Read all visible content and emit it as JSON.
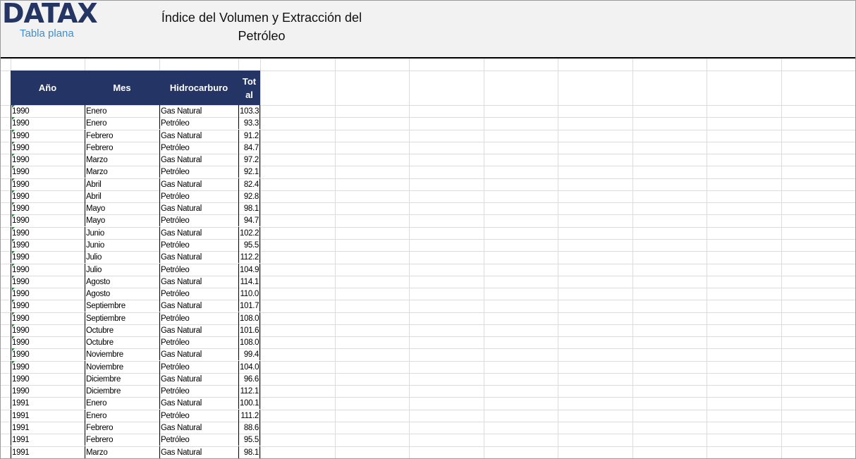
{
  "header": {
    "logo": "DATAX",
    "subtitle": "Tabla plana",
    "title_line1": "Índice del Volumen y Extracción del",
    "title_line2": "Petróleo"
  },
  "table": {
    "columns": [
      "Año",
      "Mes",
      "Hidrocarburo",
      "Tot al"
    ],
    "rows": [
      [
        "1990",
        "Enero",
        "Gas Natural",
        "103.3"
      ],
      [
        "1990",
        "Enero",
        "Petróleo",
        "93.3"
      ],
      [
        "1990",
        "Febrero",
        "Gas Natural",
        "91.2"
      ],
      [
        "1990",
        "Febrero",
        "Petróleo",
        "84.7"
      ],
      [
        "1990",
        "Marzo",
        "Gas Natural",
        "97.2"
      ],
      [
        "1990",
        "Marzo",
        "Petróleo",
        "92.1"
      ],
      [
        "1990",
        "Abril",
        "Gas Natural",
        "82.4"
      ],
      [
        "1990",
        "Abril",
        "Petróleo",
        "92.8"
      ],
      [
        "1990",
        "Mayo",
        "Gas Natural",
        "98.1"
      ],
      [
        "1990",
        "Mayo",
        "Petróleo",
        "94.7"
      ],
      [
        "1990",
        "Junio",
        "Gas Natural",
        "102.2"
      ],
      [
        "1990",
        "Junio",
        "Petróleo",
        "95.5"
      ],
      [
        "1990",
        "Julio",
        "Gas Natural",
        "112.2"
      ],
      [
        "1990",
        "Julio",
        "Petróleo",
        "104.9"
      ],
      [
        "1990",
        "Agosto",
        "Gas Natural",
        "114.1"
      ],
      [
        "1990",
        "Agosto",
        "Petróleo",
        "110.0"
      ],
      [
        "1990",
        "Septiembre",
        "Gas Natural",
        "101.7"
      ],
      [
        "1990",
        "Septiembre",
        "Petróleo",
        "108.0"
      ],
      [
        "1990",
        "Octubre",
        "Gas Natural",
        "101.6"
      ],
      [
        "1990",
        "Octubre",
        "Petróleo",
        "108.0"
      ],
      [
        "1990",
        "Noviembre",
        "Gas Natural",
        "99.4"
      ],
      [
        "1990",
        "Noviembre",
        "Petróleo",
        "104.0"
      ],
      [
        "1990",
        "Diciembre",
        "Gas Natural",
        "96.6"
      ],
      [
        "1990",
        "Diciembre",
        "Petróleo",
        "112.1"
      ],
      [
        "1991",
        "Enero",
        "Gas Natural",
        "100.1"
      ],
      [
        "1991",
        "Enero",
        "Petróleo",
        "111.2"
      ],
      [
        "1991",
        "Febrero",
        "Gas Natural",
        "88.6"
      ],
      [
        "1991",
        "Febrero",
        "Petróleo",
        "95.5"
      ],
      [
        "1991",
        "Marzo",
        "Gas Natural",
        "98.1"
      ]
    ],
    "text_number_flag_rows": 22
  },
  "colors": {
    "header_bg": "#243465",
    "logo": "#253563",
    "subtitle": "#3d8fd1",
    "flag": "#1d8a3a"
  }
}
